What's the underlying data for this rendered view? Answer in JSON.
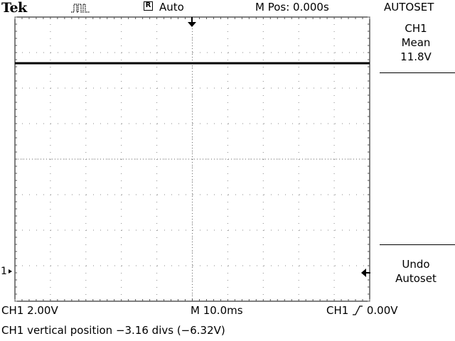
{
  "header": {
    "brand": "Tek",
    "acquire_icon": "pulse-waveform-icon",
    "trigger_state_letter": "R",
    "trigger_mode": "Auto",
    "horizontal_position": "M Pos: 0.000s"
  },
  "menu": {
    "title": "AUTOSET",
    "box1": {
      "line1": "CH1",
      "line2": "Mean",
      "line3": "11.8V"
    },
    "box2": {
      "line1": "Undo",
      "line2": "Autoset"
    }
  },
  "display": {
    "channel_marker": "1",
    "channel_marker_icon": "right-arrow-marker-icon",
    "trigger_position_icon": "down-arrow-marker-icon",
    "trigger_level_icon": "left-arrow-marker-icon",
    "trace_color": "#000000",
    "grid_divisions": {
      "horizontal": 10,
      "vertical": 8
    },
    "trace_level_divs_from_top": 1.3
  },
  "status": {
    "ch1_scale": "CH1  2.00V",
    "timebase": "M 10.0ms",
    "trigger_source": "CH1",
    "trigger_slope_icon": "rising-edge-icon",
    "trigger_level": "0.00V"
  },
  "message": "CH1 vertical position −3.16 divs (−6.32V)"
}
